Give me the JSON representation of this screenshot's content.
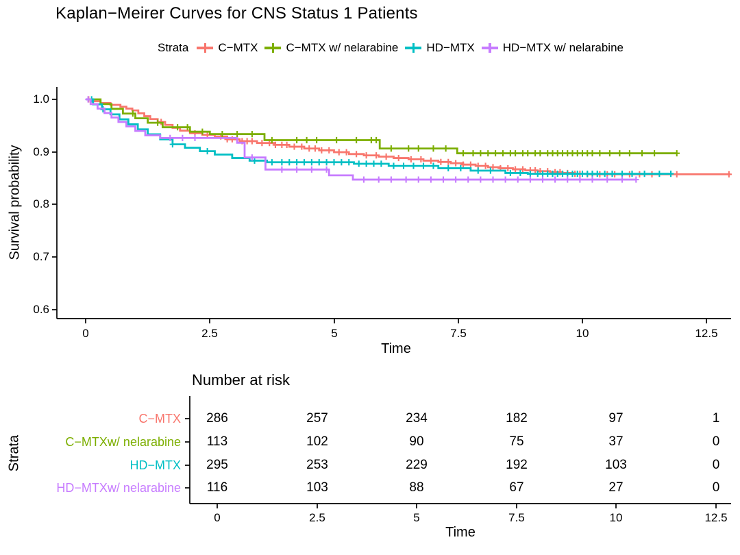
{
  "title": "Kaplan−Meirer Curves for CNS Status 1 Patients",
  "legend": {
    "label": "Strata",
    "items": [
      {
        "label": "C−MTX",
        "color": "#F8766D"
      },
      {
        "label": "C−MTX w/ nelarabine",
        "color": "#7CAE00"
      },
      {
        "label": "HD−MTX",
        "color": "#00BFC4"
      },
      {
        "label": "HD−MTX w/ nelarabine",
        "color": "#C77CFF"
      }
    ]
  },
  "plot": {
    "ylabel": "Survival probability",
    "xlabel": "Time",
    "y_ticks": [
      "1.0",
      "0.9",
      "0.8",
      "0.7",
      "0.6"
    ],
    "x_ticks": [
      "0",
      "2.5",
      "5",
      "7.5",
      "10",
      "12.5"
    ]
  },
  "risk_table": {
    "title": "Number at risk",
    "ylabel": "Strata",
    "xlabel": "Time",
    "x_ticks": [
      "0",
      "2.5",
      "5",
      "7.5",
      "10",
      "12.5"
    ],
    "rows": [
      {
        "label": "C−MTX",
        "color": "#F8766D",
        "values": [
          "286",
          "257",
          "234",
          "182",
          "97",
          "1"
        ]
      },
      {
        "label": "C−MTXw/ nelarabine",
        "color": "#7CAE00",
        "values": [
          "113",
          "102",
          "90",
          "75",
          "37",
          "0"
        ]
      },
      {
        "label": "HD−MTX",
        "color": "#00BFC4",
        "values": [
          "295",
          "253",
          "229",
          "192",
          "103",
          "0"
        ]
      },
      {
        "label": "HD−MTXw/ nelarabine",
        "color": "#C77CFF",
        "values": [
          "116",
          "103",
          "88",
          "67",
          "27",
          "0"
        ]
      }
    ]
  },
  "chart_data": {
    "type": "line",
    "subtype": "kaplan-meier-step",
    "title": "Kaplan−Meirer Curves for CNS Status 1 Patients",
    "xlabel": "Time",
    "ylabel": "Survival probability",
    "xlim": [
      0,
      13
    ],
    "ylim": [
      0.58,
      1.0
    ],
    "x_tick_values": [
      0,
      2.5,
      5,
      7.5,
      10,
      12.5
    ],
    "y_tick_values": [
      1.0,
      0.9,
      0.8,
      0.7,
      0.6
    ],
    "legend_position": "top",
    "grid": false,
    "series": [
      {
        "name": "C−MTX",
        "color": "#F8766D",
        "n_at_risk": [
          286,
          257,
          234,
          182,
          97,
          1
        ],
        "end": 12.98,
        "steps": [
          [
            0,
            1
          ],
          [
            0.12,
            0.9965
          ],
          [
            0.3,
            0.993
          ],
          [
            0.5,
            0.9895
          ],
          [
            0.7,
            0.986
          ],
          [
            0.82,
            0.9825
          ],
          [
            0.94,
            0.979
          ],
          [
            1.06,
            0.9735
          ],
          [
            1.18,
            0.968
          ],
          [
            1.3,
            0.9625
          ],
          [
            1.45,
            0.957
          ],
          [
            1.6,
            0.9515
          ],
          [
            1.75,
            0.946
          ],
          [
            1.9,
            0.9405
          ],
          [
            2.1,
            0.9355
          ],
          [
            2.35,
            0.9325
          ],
          [
            2.6,
            0.9295
          ],
          [
            2.85,
            0.924
          ],
          [
            3.1,
            0.9205
          ],
          [
            3.45,
            0.917
          ],
          [
            3.8,
            0.9135
          ],
          [
            4.1,
            0.91
          ],
          [
            4.4,
            0.9065
          ],
          [
            4.7,
            0.903
          ],
          [
            5.0,
            0.8995
          ],
          [
            5.3,
            0.896
          ],
          [
            5.6,
            0.8935
          ],
          [
            5.9,
            0.891
          ],
          [
            6.2,
            0.8885
          ],
          [
            6.5,
            0.886
          ],
          [
            6.8,
            0.8835
          ],
          [
            7.1,
            0.881
          ],
          [
            7.35,
            0.8785
          ],
          [
            7.6,
            0.876
          ],
          [
            7.85,
            0.8735
          ],
          [
            8.1,
            0.871
          ],
          [
            8.35,
            0.869
          ],
          [
            8.6,
            0.867
          ],
          [
            8.85,
            0.865
          ],
          [
            9.1,
            0.8635
          ],
          [
            9.35,
            0.8615
          ],
          [
            9.6,
            0.86
          ],
          [
            9.85,
            0.8585
          ],
          [
            10.1,
            0.8575
          ]
        ],
        "censor_times": [
          0.06,
          1.52,
          2.2,
          2.45,
          2.72,
          2.85,
          2.95,
          3.05,
          3.15,
          3.25,
          3.35,
          3.55,
          3.7,
          3.82,
          3.95,
          4.05,
          4.2,
          4.35,
          4.5,
          4.62,
          4.75,
          4.9,
          5.1,
          5.25,
          5.45,
          5.65,
          5.85,
          6.05,
          6.3,
          6.55,
          6.75,
          6.95,
          7.15,
          7.3,
          7.45,
          7.6,
          7.75,
          7.9,
          8.05,
          8.2,
          8.35,
          8.5,
          8.65,
          8.8,
          8.95,
          9.05,
          9.15,
          9.3,
          9.45,
          9.55,
          9.7,
          9.85,
          9.95,
          10.1,
          10.2,
          10.35,
          10.5,
          10.65,
          10.8,
          10.95,
          11.15,
          11.4,
          11.9,
          12.95
        ]
      },
      {
        "name": "C−MTX w/ nelarabine",
        "color": "#7CAE00",
        "n_at_risk": [
          113,
          102,
          90,
          75,
          37,
          0
        ],
        "end": 11.9,
        "steps": [
          [
            0,
            1
          ],
          [
            0.3,
            0.991
          ],
          [
            0.52,
            0.982
          ],
          [
            0.75,
            0.973
          ],
          [
            1.0,
            0.964
          ],
          [
            1.25,
            0.9555
          ],
          [
            1.55,
            0.947
          ],
          [
            2.1,
            0.9385
          ],
          [
            2.5,
            0.934
          ],
          [
            3.6,
            0.9225
          ],
          [
            5.92,
            0.9065
          ],
          [
            7.48,
            0.8975
          ]
        ],
        "censor_times": [
          0.95,
          1.45,
          1.85,
          2.05,
          2.35,
          2.75,
          3.05,
          3.35,
          3.75,
          4.25,
          4.45,
          4.65,
          5.05,
          5.45,
          5.75,
          5.85,
          6.15,
          6.5,
          6.7,
          7.0,
          7.25,
          7.6,
          7.8,
          7.95,
          8.1,
          8.25,
          8.4,
          8.55,
          8.65,
          8.8,
          8.9,
          9.05,
          9.15,
          9.3,
          9.4,
          9.5,
          9.6,
          9.7,
          9.8,
          9.9,
          10.0,
          10.1,
          10.2,
          10.35,
          10.55,
          10.75,
          10.95,
          11.2,
          11.45,
          11.9
        ]
      },
      {
        "name": "HD−MTX",
        "color": "#00BFC4",
        "n_at_risk": [
          295,
          253,
          229,
          192,
          103,
          0
        ],
        "end": 11.78,
        "steps": [
          [
            0,
            1
          ],
          [
            0.15,
            0.9905
          ],
          [
            0.33,
            0.981
          ],
          [
            0.5,
            0.9715
          ],
          [
            0.68,
            0.962
          ],
          [
            0.86,
            0.9525
          ],
          [
            1.05,
            0.943
          ],
          [
            1.25,
            0.9335
          ],
          [
            1.5,
            0.924
          ],
          [
            1.75,
            0.9145
          ],
          [
            2.0,
            0.908
          ],
          [
            2.3,
            0.9015
          ],
          [
            2.6,
            0.895
          ],
          [
            2.95,
            0.8885
          ],
          [
            3.3,
            0.8835
          ],
          [
            3.65,
            0.8805
          ],
          [
            5.4,
            0.8775
          ],
          [
            6.1,
            0.8735
          ],
          [
            7.1,
            0.869
          ],
          [
            7.75,
            0.8645
          ],
          [
            8.45,
            0.86
          ],
          [
            8.9,
            0.8585
          ]
        ],
        "censor_times": [
          0.12,
          0.35,
          1.75,
          2.45,
          3.4,
          3.75,
          3.95,
          4.1,
          4.25,
          4.4,
          4.55,
          4.7,
          4.85,
          5.0,
          5.15,
          5.3,
          5.5,
          5.65,
          5.8,
          5.95,
          6.2,
          6.4,
          6.6,
          6.8,
          7.0,
          7.3,
          7.55,
          7.9,
          8.15,
          8.55,
          8.75,
          8.95,
          9.1,
          9.2,
          9.3,
          9.4,
          9.5,
          9.6,
          9.7,
          9.8,
          9.9,
          10.0,
          10.1,
          10.2,
          10.3,
          10.45,
          10.6,
          10.8,
          11.0,
          11.25,
          11.55,
          11.78
        ]
      },
      {
        "name": "HD−MTX w/ nelarabine",
        "color": "#C77CFF",
        "n_at_risk": [
          116,
          103,
          88,
          67,
          27,
          0
        ],
        "end": 11.08,
        "steps": [
          [
            0,
            1
          ],
          [
            0.1,
            0.991
          ],
          [
            0.24,
            0.9825
          ],
          [
            0.38,
            0.974
          ],
          [
            0.52,
            0.9655
          ],
          [
            0.66,
            0.957
          ],
          [
            0.82,
            0.9485
          ],
          [
            1.0,
            0.94
          ],
          [
            1.2,
            0.9315
          ],
          [
            1.5,
            0.9265
          ],
          [
            3.05,
            0.9175
          ],
          [
            3.2,
            0.8895
          ],
          [
            3.62,
            0.8665
          ],
          [
            4.9,
            0.8555
          ],
          [
            5.38,
            0.8475
          ]
        ],
        "censor_times": [
          0.05,
          1.7,
          1.95,
          2.2,
          3.35,
          3.95,
          4.25,
          4.55,
          4.85,
          5.6,
          5.9,
          6.15,
          6.45,
          6.7,
          6.95,
          7.2,
          7.45,
          7.7,
          7.95,
          8.2,
          8.45,
          8.7,
          8.95,
          9.2,
          9.45,
          9.7,
          9.95,
          10.2,
          10.5,
          10.8,
          11.08
        ]
      }
    ],
    "risk_table_title": "Number at risk",
    "risk_table_times": [
      0,
      2.5,
      5,
      7.5,
      10,
      12.5
    ]
  }
}
